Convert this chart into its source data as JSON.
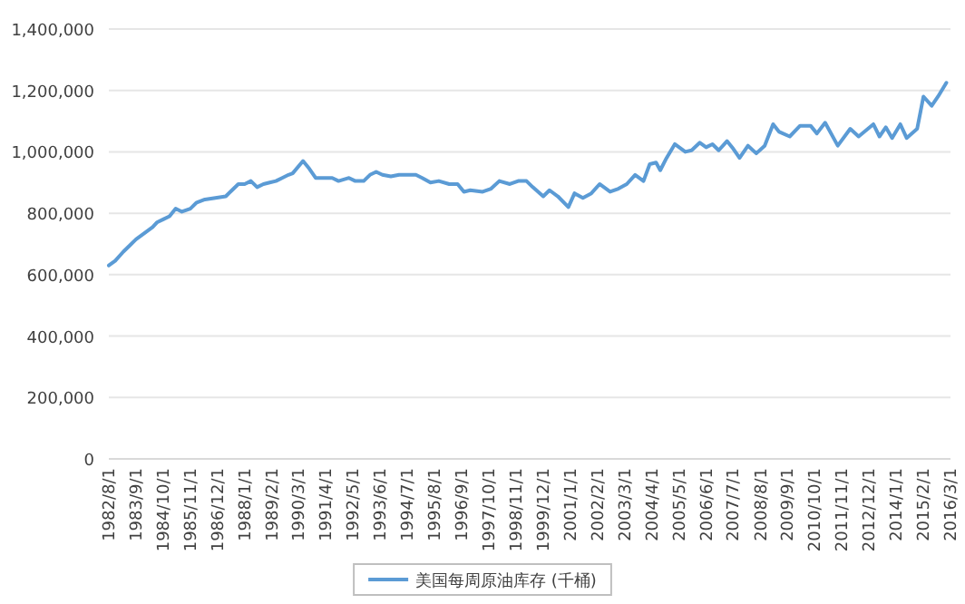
{
  "chart_data": {
    "type": "line",
    "x": [
      "1982-08",
      "1982-11",
      "1983-03",
      "1983-06",
      "1983-09",
      "1984-01",
      "1984-05",
      "1984-07",
      "1984-10",
      "1985-01",
      "1985-04",
      "1985-07",
      "1985-11",
      "1986-02",
      "1986-06",
      "1986-11",
      "1987-04",
      "1987-07",
      "1987-10",
      "1988-01",
      "1988-04",
      "1988-07",
      "1988-10",
      "1989-01",
      "1989-04",
      "1989-07",
      "1989-10",
      "1989-12",
      "1990-05",
      "1990-08",
      "1990-11",
      "1991-03",
      "1991-07",
      "1991-10",
      "1992-03",
      "1992-06",
      "1992-10",
      "1993-01",
      "1993-04",
      "1993-07",
      "1993-11",
      "1994-03",
      "1994-08",
      "1994-11",
      "1995-02",
      "1995-06",
      "1995-10",
      "1996-03",
      "1996-07",
      "1996-10",
      "1997-01",
      "1997-07",
      "1997-11",
      "1998-03",
      "1998-08",
      "1998-12",
      "1999-04",
      "1999-07",
      "1999-12",
      "2000-03",
      "2000-07",
      "2000-12",
      "2001-03",
      "2001-07",
      "2001-11",
      "2002-03",
      "2002-08",
      "2002-12",
      "2003-04",
      "2003-08",
      "2003-12",
      "2004-03",
      "2004-06",
      "2004-08",
      "2004-11",
      "2005-03",
      "2005-08",
      "2005-11",
      "2006-03",
      "2006-06",
      "2006-09",
      "2006-12",
      "2007-04",
      "2007-07",
      "2007-10",
      "2008-02",
      "2008-06",
      "2008-10",
      "2009-02",
      "2009-05",
      "2009-10",
      "2010-03",
      "2010-08",
      "2010-11",
      "2011-03",
      "2011-09",
      "2012-03",
      "2012-07",
      "2013-02",
      "2013-05",
      "2013-08",
      "2013-11",
      "2014-03",
      "2014-06",
      "2014-11",
      "2015-02",
      "2015-06",
      "2015-09",
      "2016-01"
    ],
    "series": [
      {
        "name": "美国每周原油库存 (千桶)",
        "color": "#5b9bd5",
        "values": [
          630000,
          645000,
          675000,
          695000,
          715000,
          735000,
          755000,
          770000,
          780000,
          790000,
          815000,
          805000,
          815000,
          835000,
          845000,
          850000,
          855000,
          875000,
          895000,
          895000,
          905000,
          885000,
          895000,
          900000,
          905000,
          915000,
          925000,
          930000,
          970000,
          945000,
          915000,
          915000,
          915000,
          905000,
          915000,
          905000,
          905000,
          925000,
          935000,
          925000,
          920000,
          925000,
          925000,
          925000,
          915000,
          900000,
          905000,
          895000,
          895000,
          870000,
          875000,
          870000,
          880000,
          905000,
          895000,
          905000,
          905000,
          885000,
          855000,
          875000,
          855000,
          820000,
          865000,
          850000,
          865000,
          895000,
          870000,
          880000,
          895000,
          925000,
          905000,
          960000,
          965000,
          940000,
          980000,
          1025000,
          1000000,
          1005000,
          1030000,
          1015000,
          1025000,
          1005000,
          1035000,
          1010000,
          980000,
          1020000,
          995000,
          1020000,
          1090000,
          1065000,
          1050000,
          1085000,
          1085000,
          1060000,
          1095000,
          1020000,
          1075000,
          1050000,
          1090000,
          1050000,
          1080000,
          1045000,
          1090000,
          1045000,
          1075000,
          1180000,
          1150000,
          1180000,
          1225000
        ]
      }
    ],
    "xlim": [
      "1982-08-01",
      "2016-03-01"
    ],
    "xticks": [
      {
        "value": "1982-08-01",
        "label": "1982/8/1"
      },
      {
        "value": "1983-09-01",
        "label": "1983/9/1"
      },
      {
        "value": "1984-10-01",
        "label": "1984/10/1"
      },
      {
        "value": "1985-11-01",
        "label": "1985/11/1"
      },
      {
        "value": "1986-12-01",
        "label": "1986/12/1"
      },
      {
        "value": "1988-01-01",
        "label": "1988/1/1"
      },
      {
        "value": "1989-02-01",
        "label": "1989/2/1"
      },
      {
        "value": "1990-03-01",
        "label": "1990/3/1"
      },
      {
        "value": "1991-04-01",
        "label": "1991/4/1"
      },
      {
        "value": "1992-05-01",
        "label": "1992/5/1"
      },
      {
        "value": "1993-06-01",
        "label": "1993/6/1"
      },
      {
        "value": "1994-07-01",
        "label": "1994/7/1"
      },
      {
        "value": "1995-08-01",
        "label": "1995/8/1"
      },
      {
        "value": "1996-09-01",
        "label": "1996/9/1"
      },
      {
        "value": "1997-10-01",
        "label": "1997/10/1"
      },
      {
        "value": "1998-11-01",
        "label": "1998/11/1"
      },
      {
        "value": "1999-12-01",
        "label": "1999/12/1"
      },
      {
        "value": "2001-01-01",
        "label": "2001/1/1"
      },
      {
        "value": "2002-02-01",
        "label": "2002/2/1"
      },
      {
        "value": "2003-03-01",
        "label": "2003/3/1"
      },
      {
        "value": "2004-04-01",
        "label": "2004/4/1"
      },
      {
        "value": "2005-05-01",
        "label": "2005/5/1"
      },
      {
        "value": "2006-06-01",
        "label": "2006/6/1"
      },
      {
        "value": "2007-07-01",
        "label": "2007/7/1"
      },
      {
        "value": "2008-08-01",
        "label": "2008/8/1"
      },
      {
        "value": "2009-09-01",
        "label": "2009/9/1"
      },
      {
        "value": "2010-10-01",
        "label": "2010/10/1"
      },
      {
        "value": "2011-11-01",
        "label": "2011/11/1"
      },
      {
        "value": "2012-12-01",
        "label": "2012/12/1"
      },
      {
        "value": "2014-01-01",
        "label": "2014/1/1"
      },
      {
        "value": "2015-02-01",
        "label": "2015/2/1"
      },
      {
        "value": "2016-03-01",
        "label": "2016/3/1"
      }
    ],
    "ylim": [
      0,
      1400000
    ],
    "yticks": [
      0,
      {
        "value": 200000,
        "label": "200,000"
      },
      {
        "value": 400000,
        "label": "400,000"
      },
      {
        "value": 600000,
        "label": "600,000"
      },
      {
        "value": 800000,
        "label": "800,000"
      },
      {
        "value": 1000000,
        "label": "1,000,000"
      },
      {
        "value": 1200000,
        "label": "1,200,000"
      },
      {
        "value": 1400000,
        "label": "1,400,000"
      }
    ],
    "grid": "y",
    "legend": "bottom",
    "marker": "none",
    "line_style": "solid"
  }
}
